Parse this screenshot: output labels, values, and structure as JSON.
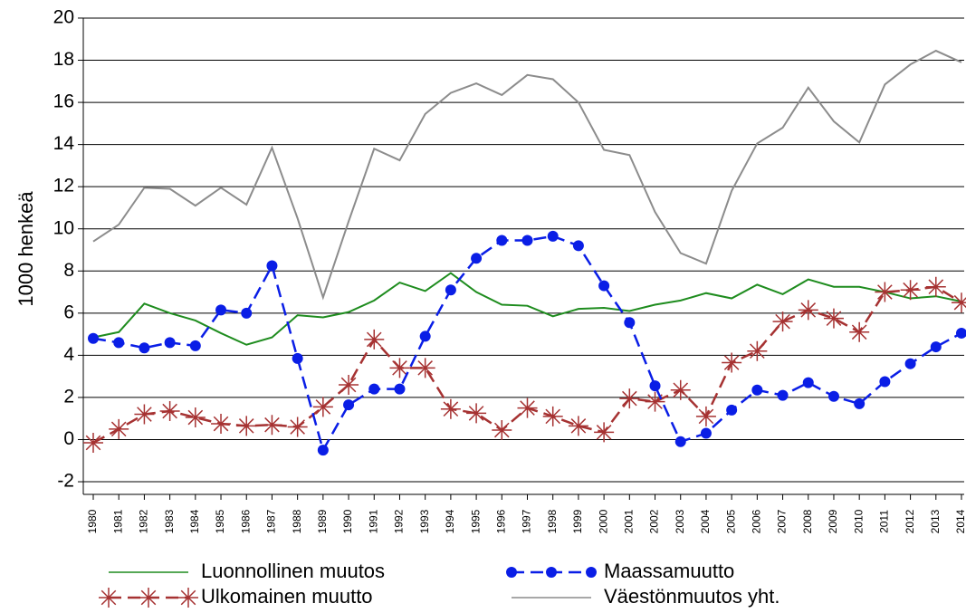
{
  "chart_data": {
    "type": "line",
    "y_label": "1000 henkeä",
    "categories": [
      "1980",
      "1981",
      "1982",
      "1983",
      "1984",
      "1985",
      "1986",
      "1987",
      "1988",
      "1989",
      "1990",
      "1991",
      "1992",
      "1993",
      "1994",
      "1995",
      "1996",
      "1997",
      "1998",
      "1999",
      "2000",
      "2001",
      "2002",
      "2003",
      "2004",
      "2005",
      "2006",
      "2007",
      "2008",
      "2009",
      "2010",
      "2011",
      "2012",
      "2013",
      "2014"
    ],
    "ylim": [
      -2.6,
      20.6
    ],
    "yticks": [
      -2,
      0,
      2,
      4,
      6,
      8,
      10,
      12,
      14,
      16,
      18,
      20
    ],
    "grid": true,
    "series": [
      {
        "name": "Luonnollinen muutos",
        "color": "#1e8c1e",
        "style": "solid",
        "marker": "none",
        "values": [
          4.85,
          5.1,
          6.45,
          6.0,
          5.65,
          5.05,
          4.5,
          4.85,
          5.9,
          5.8,
          6.05,
          6.6,
          7.45,
          7.05,
          7.9,
          7.0,
          6.4,
          6.35,
          5.85,
          6.2,
          6.25,
          6.1,
          6.4,
          6.6,
          6.95,
          6.7,
          7.35,
          6.9,
          7.6,
          7.25,
          7.25,
          7.0,
          6.7,
          6.8,
          6.55
        ]
      },
      {
        "name": "Maassamuutto",
        "color": "#0a1ee6",
        "style": "dashed",
        "marker": "circle",
        "values": [
          4.8,
          4.6,
          4.35,
          4.6,
          4.45,
          6.15,
          6.0,
          8.25,
          3.85,
          -0.5,
          1.65,
          2.4,
          2.4,
          4.9,
          7.1,
          8.6,
          9.45,
          9.45,
          9.65,
          9.2,
          7.3,
          5.55,
          2.55,
          -0.1,
          0.3,
          1.4,
          2.35,
          2.1,
          2.7,
          2.05,
          1.7,
          2.75,
          3.6,
          4.4,
          5.05
        ]
      },
      {
        "name": "Ulkomainen muutto",
        "color": "#a63232",
        "style": "dashed",
        "marker": "asterisk",
        "values": [
          -0.15,
          0.5,
          1.2,
          1.35,
          1.05,
          0.75,
          0.65,
          0.7,
          0.6,
          1.55,
          2.6,
          4.75,
          3.4,
          3.4,
          1.45,
          1.25,
          0.45,
          1.5,
          1.1,
          0.65,
          0.35,
          1.95,
          1.8,
          2.35,
          1.1,
          3.65,
          4.2,
          5.6,
          6.15,
          5.75,
          5.1,
          7.0,
          7.1,
          7.25,
          6.5
        ]
      },
      {
        "name": "Väestönmuutos yht.",
        "color": "#8c8c8c",
        "style": "solid",
        "marker": "none",
        "values": [
          9.4,
          10.2,
          11.95,
          11.9,
          11.1,
          11.95,
          11.15,
          13.85,
          10.5,
          6.75,
          10.35,
          13.8,
          13.25,
          15.45,
          16.45,
          16.9,
          16.35,
          17.3,
          17.1,
          16.0,
          13.75,
          13.5,
          10.8,
          8.85,
          8.35,
          11.8,
          14.05,
          14.8,
          16.7,
          15.1,
          14.1,
          16.85,
          17.8,
          18.45,
          17.9
        ]
      }
    ]
  }
}
